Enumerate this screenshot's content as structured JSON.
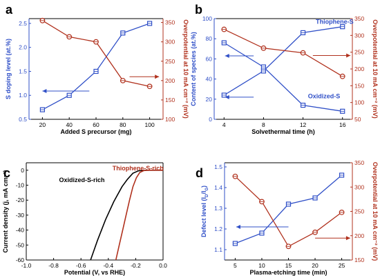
{
  "colors": {
    "blue": "#2f4fc7",
    "red": "#b0301c",
    "black": "#000000"
  },
  "chart_data": [
    {
      "panel": "a",
      "type": "line",
      "x_type": "number",
      "xlabel": "Added S precursor (mg)",
      "ylabel": "S doping level (at.%)",
      "ylabel2": "Overpotential at 10 mA cm⁻² (mV)",
      "xlim": [
        10,
        110
      ],
      "ylim": [
        0.5,
        2.6
      ],
      "ylim2": [
        100,
        360
      ],
      "xticks": [
        20,
        40,
        60,
        80,
        100
      ],
      "yticks": [
        0.5,
        1.0,
        1.5,
        2.0,
        2.5
      ],
      "yticks_labels": [
        "0.5",
        "1.0",
        "1.5",
        "2.0",
        "2.5"
      ],
      "yticks2": [
        100,
        150,
        200,
        250,
        300,
        350
      ],
      "series": [
        {
          "axis": "left",
          "color": "blue",
          "x": [
            20,
            40,
            60,
            80,
            100
          ],
          "values": [
            0.7,
            1.0,
            1.5,
            2.3,
            2.5
          ]
        },
        {
          "axis": "right",
          "color": "red",
          "x": [
            20,
            40,
            60,
            80,
            100
          ],
          "values": [
            355,
            313,
            300,
            200,
            185
          ]
        }
      ],
      "arrows": [
        {
          "dir": "left",
          "axis": "left",
          "y": 1.09,
          "x_from": 55,
          "x_to": 20
        },
        {
          "dir": "right",
          "axis": "right",
          "y": 210,
          "x_from": 85,
          "x_to": 107
        }
      ],
      "annotations": []
    },
    {
      "panel": "b",
      "type": "line",
      "x_type": "number",
      "xlabel": "Solvethermal time (h)",
      "ylabel": "Content of species (at.%)",
      "ylabel2": "Overpotential at 10 mA cm⁻² (mV)",
      "xlim": [
        3,
        17
      ],
      "ylim": [
        0,
        100
      ],
      "ylim2": [
        50,
        350
      ],
      "xticks": [
        4,
        8,
        12,
        16
      ],
      "yticks": [
        0,
        20,
        40,
        60,
        80,
        100
      ],
      "yticks_labels": [
        "0",
        "20",
        "40",
        "60",
        "80",
        "100"
      ],
      "yticks2": [
        50,
        100,
        150,
        200,
        250,
        300,
        350
      ],
      "series": [
        {
          "name": "Thiophene-S",
          "axis": "left",
          "color": "blue",
          "x": [
            4,
            8,
            12,
            16
          ],
          "values": [
            24,
            48,
            86,
            92
          ]
        },
        {
          "name": "Oxidized-S",
          "axis": "left",
          "color": "blue",
          "x": [
            4,
            8,
            12,
            16
          ],
          "values": [
            76,
            52,
            14,
            8
          ]
        },
        {
          "axis": "right",
          "color": "red",
          "x": [
            4,
            8,
            12,
            16
          ],
          "values": [
            318,
            262,
            248,
            178
          ]
        }
      ],
      "arrows": [
        {
          "dir": "left",
          "axis": "left",
          "y": 63,
          "x_from": 7,
          "x_to": 4.1
        },
        {
          "dir": "left",
          "axis": "left",
          "y": 22,
          "x_from": 7,
          "x_to": 4.1
        },
        {
          "dir": "right",
          "axis": "right",
          "y": 240,
          "x_from": 13,
          "x_to": 16.8
        }
      ],
      "annotations": [
        {
          "text": "Thiophene-S",
          "x": 13.3,
          "y": 95,
          "color": "blue"
        },
        {
          "text": "Oxidized-S",
          "x": 12.5,
          "y": 21,
          "color": "blue"
        }
      ]
    },
    {
      "panel": "c",
      "type": "line",
      "x_type": "number",
      "xlabel": "Potential (V, vs RHE)",
      "ylabel": "Current density (j, mA cm⁻²)",
      "xlim": [
        -1.0,
        0.0
      ],
      "ylim": [
        -60,
        5
      ],
      "xticks": [
        -1.0,
        -0.8,
        -0.6,
        -0.4,
        -0.2,
        0.0
      ],
      "xticks_labels": [
        "-1.0",
        "-0.8",
        "-0.6",
        "-0.4",
        "-0.2",
        "0.0"
      ],
      "yticks": [
        -60,
        -50,
        -40,
        -30,
        -20,
        -10,
        0
      ],
      "yticks_labels": [
        "-60",
        "-50",
        "-40",
        "-30",
        "-20",
        "-10",
        "0"
      ],
      "series": [
        {
          "name": "Oxidized-S-rich",
          "axis": "left",
          "color": "black",
          "x": [
            -0.53,
            -0.48,
            -0.42,
            -0.36,
            -0.3,
            -0.26,
            -0.22,
            -0.18,
            -0.12,
            -0.05,
            0.0
          ],
          "values": [
            -60,
            -47,
            -33,
            -21,
            -11,
            -6,
            -2,
            -0.4,
            0,
            0,
            0
          ]
        },
        {
          "name": "Thiophene-S-rich",
          "axis": "left",
          "color": "red",
          "x": [
            -0.345,
            -0.32,
            -0.295,
            -0.27,
            -0.245,
            -0.22,
            -0.195,
            -0.17,
            -0.14,
            -0.1,
            -0.05,
            0.0
          ],
          "values": [
            -60,
            -50,
            -40,
            -30,
            -20,
            -11,
            -5,
            -1.5,
            -0.2,
            0,
            0,
            0
          ]
        }
      ],
      "arrows": [],
      "annotations": [
        {
          "text": "Thiophene-S-rich",
          "x": -0.37,
          "y": 0,
          "color": "red"
        },
        {
          "text": "Oxidized-S-rich",
          "x": -0.76,
          "y": -8,
          "color": "black"
        }
      ]
    },
    {
      "panel": "d",
      "type": "line",
      "x_type": "number",
      "xlabel": "Plasma-etching time (min)",
      "ylabel": "Defect level (I_D/I_G)",
      "ylabel2": "Overpotential at 10 mA cm⁻² (mV)",
      "xlim": [
        3,
        27
      ],
      "ylim": [
        1.05,
        1.52
      ],
      "ylim2": [
        150,
        350
      ],
      "xticks": [
        5,
        10,
        15,
        20,
        25
      ],
      "yticks": [
        1.1,
        1.2,
        1.3,
        1.4,
        1.5
      ],
      "yticks_labels": [
        "1.1",
        "1.2",
        "1.3",
        "1.4",
        "1.5"
      ],
      "yticks2": [
        150,
        200,
        250,
        300,
        350
      ],
      "series": [
        {
          "axis": "left",
          "color": "blue",
          "x": [
            5,
            10,
            15,
            20,
            25
          ],
          "values": [
            1.13,
            1.18,
            1.32,
            1.35,
            1.46
          ]
        },
        {
          "axis": "right",
          "color": "red",
          "x": [
            5,
            10,
            15,
            20,
            25
          ],
          "values": [
            322,
            270,
            178,
            207,
            248
          ]
        }
      ],
      "arrows": [
        {
          "dir": "left",
          "axis": "left",
          "y": 1.21,
          "x_from": 15,
          "x_to": 5.2
        },
        {
          "dir": "right",
          "axis": "right",
          "y": 195,
          "x_from": 20,
          "x_to": 26.6
        }
      ],
      "annotations": []
    }
  ]
}
